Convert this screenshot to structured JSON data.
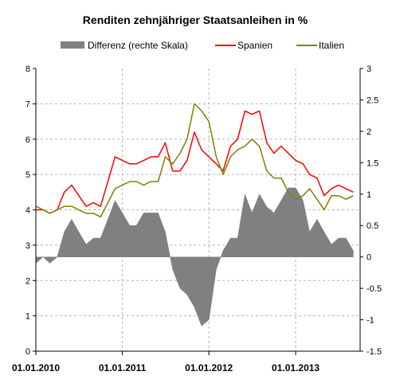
{
  "chart_data": {
    "type": "line",
    "title": "Renditen zehnjähriger Staatsanleihen in %",
    "legend": {
      "placement": "top",
      "entries": [
        {
          "label": "Differenz (rechte Skala)",
          "color": "#808080",
          "kind": "area"
        },
        {
          "label": "Spanien",
          "color": "#ff0000",
          "kind": "line"
        },
        {
          "label": "Italien",
          "color": "#808000",
          "kind": "line"
        }
      ]
    },
    "y_left": {
      "min": 0,
      "max": 8,
      "ticks": [
        "0",
        "1",
        "2",
        "3",
        "4",
        "5",
        "6",
        "7",
        "8"
      ]
    },
    "y_right": {
      "min": -1.5,
      "max": 3,
      "ticks": [
        "-1.5",
        "-1",
        "-0.5",
        "0",
        "0.5",
        "1",
        "1.5",
        "2",
        "2.5",
        "3"
      ]
    },
    "x_axis": {
      "type": "date",
      "min": "2010-01-01",
      "max": "2013-09-30",
      "tick_labels": [
        "01.01.2010",
        "01.01.2011",
        "01.01.2012",
        "01.01.2013"
      ],
      "tick_dates": [
        "2010-01-01",
        "2011-01-01",
        "2012-01-01",
        "2013-01-01"
      ]
    },
    "grid": true,
    "series": [
      {
        "name": "Spanien",
        "axis": "left",
        "color": "#ff0000",
        "x": [
          "2010-01-01",
          "2010-02-01",
          "2010-03-01",
          "2010-04-01",
          "2010-05-01",
          "2010-06-01",
          "2010-07-01",
          "2010-08-01",
          "2010-09-01",
          "2010-10-01",
          "2010-11-01",
          "2010-12-01",
          "2011-01-01",
          "2011-02-01",
          "2011-03-01",
          "2011-04-01",
          "2011-05-01",
          "2011-06-01",
          "2011-07-01",
          "2011-08-01",
          "2011-09-01",
          "2011-10-01",
          "2011-11-01",
          "2011-12-01",
          "2012-01-01",
          "2012-02-01",
          "2012-03-01",
          "2012-04-01",
          "2012-05-01",
          "2012-06-01",
          "2012-07-01",
          "2012-08-01",
          "2012-09-01",
          "2012-10-01",
          "2012-11-01",
          "2012-12-01",
          "2013-01-01",
          "2013-02-01",
          "2013-03-01",
          "2013-04-01",
          "2013-05-01",
          "2013-06-01",
          "2013-07-01",
          "2013-08-01",
          "2013-09-01"
        ],
        "y": [
          4.0,
          4.0,
          3.9,
          4.0,
          4.5,
          4.7,
          4.4,
          4.1,
          4.2,
          4.1,
          4.8,
          5.5,
          5.4,
          5.3,
          5.3,
          5.4,
          5.5,
          5.5,
          5.9,
          5.1,
          5.1,
          5.4,
          6.2,
          5.7,
          5.5,
          5.3,
          5.1,
          5.8,
          6.0,
          6.8,
          6.7,
          6.8,
          5.9,
          5.6,
          5.8,
          5.6,
          5.4,
          5.3,
          5.0,
          4.9,
          4.4,
          4.6,
          4.7,
          4.6,
          4.5
        ]
      },
      {
        "name": "Italien",
        "axis": "left",
        "color": "#808000",
        "x": [
          "2010-01-01",
          "2010-02-01",
          "2010-03-01",
          "2010-04-01",
          "2010-05-01",
          "2010-06-01",
          "2010-07-01",
          "2010-08-01",
          "2010-09-01",
          "2010-10-01",
          "2010-11-01",
          "2010-12-01",
          "2011-01-01",
          "2011-02-01",
          "2011-03-01",
          "2011-04-01",
          "2011-05-01",
          "2011-06-01",
          "2011-07-01",
          "2011-08-01",
          "2011-09-01",
          "2011-10-01",
          "2011-11-01",
          "2011-12-01",
          "2012-01-01",
          "2012-02-01",
          "2012-03-01",
          "2012-04-01",
          "2012-05-01",
          "2012-06-01",
          "2012-07-01",
          "2012-08-01",
          "2012-09-01",
          "2012-10-01",
          "2012-11-01",
          "2012-12-01",
          "2013-01-01",
          "2013-02-01",
          "2013-03-01",
          "2013-04-01",
          "2013-05-01",
          "2013-06-01",
          "2013-07-01",
          "2013-08-01",
          "2013-09-01"
        ],
        "y": [
          4.1,
          4.0,
          3.9,
          4.0,
          4.1,
          4.1,
          4.0,
          3.9,
          3.9,
          3.8,
          4.2,
          4.6,
          4.7,
          4.8,
          4.8,
          4.7,
          4.8,
          4.8,
          5.5,
          5.3,
          5.6,
          6.0,
          7.0,
          6.8,
          6.5,
          5.5,
          5.0,
          5.5,
          5.7,
          5.8,
          6.0,
          5.8,
          5.1,
          4.9,
          4.9,
          4.5,
          4.3,
          4.4,
          4.6,
          4.3,
          4.0,
          4.4,
          4.4,
          4.3,
          4.4
        ]
      },
      {
        "name": "Differenz (rechte Skala)",
        "axis": "right",
        "color": "#808080",
        "x": [
          "2010-01-01",
          "2010-02-01",
          "2010-03-01",
          "2010-04-01",
          "2010-05-01",
          "2010-06-01",
          "2010-07-01",
          "2010-08-01",
          "2010-09-01",
          "2010-10-01",
          "2010-11-01",
          "2010-12-01",
          "2011-01-01",
          "2011-02-01",
          "2011-03-01",
          "2011-04-01",
          "2011-05-01",
          "2011-06-01",
          "2011-07-01",
          "2011-08-01",
          "2011-09-01",
          "2011-10-01",
          "2011-11-01",
          "2011-12-01",
          "2012-01-01",
          "2012-02-01",
          "2012-03-01",
          "2012-04-01",
          "2012-05-01",
          "2012-06-01",
          "2012-07-01",
          "2012-08-01",
          "2012-09-01",
          "2012-10-01",
          "2012-11-01",
          "2012-12-01",
          "2013-01-01",
          "2013-02-01",
          "2013-03-01",
          "2013-04-01",
          "2013-05-01",
          "2013-06-01",
          "2013-07-01",
          "2013-08-01",
          "2013-09-01"
        ],
        "y": [
          -0.1,
          0.0,
          -0.1,
          0.0,
          0.4,
          0.6,
          0.4,
          0.2,
          0.3,
          0.3,
          0.6,
          0.9,
          0.7,
          0.5,
          0.5,
          0.7,
          0.7,
          0.7,
          0.4,
          -0.2,
          -0.5,
          -0.6,
          -0.8,
          -1.1,
          -1.0,
          -0.2,
          0.1,
          0.3,
          0.3,
          1.0,
          0.7,
          1.0,
          0.8,
          0.7,
          0.9,
          1.1,
          1.1,
          0.9,
          0.4,
          0.6,
          0.4,
          0.2,
          0.3,
          0.3,
          0.1
        ]
      }
    ]
  }
}
